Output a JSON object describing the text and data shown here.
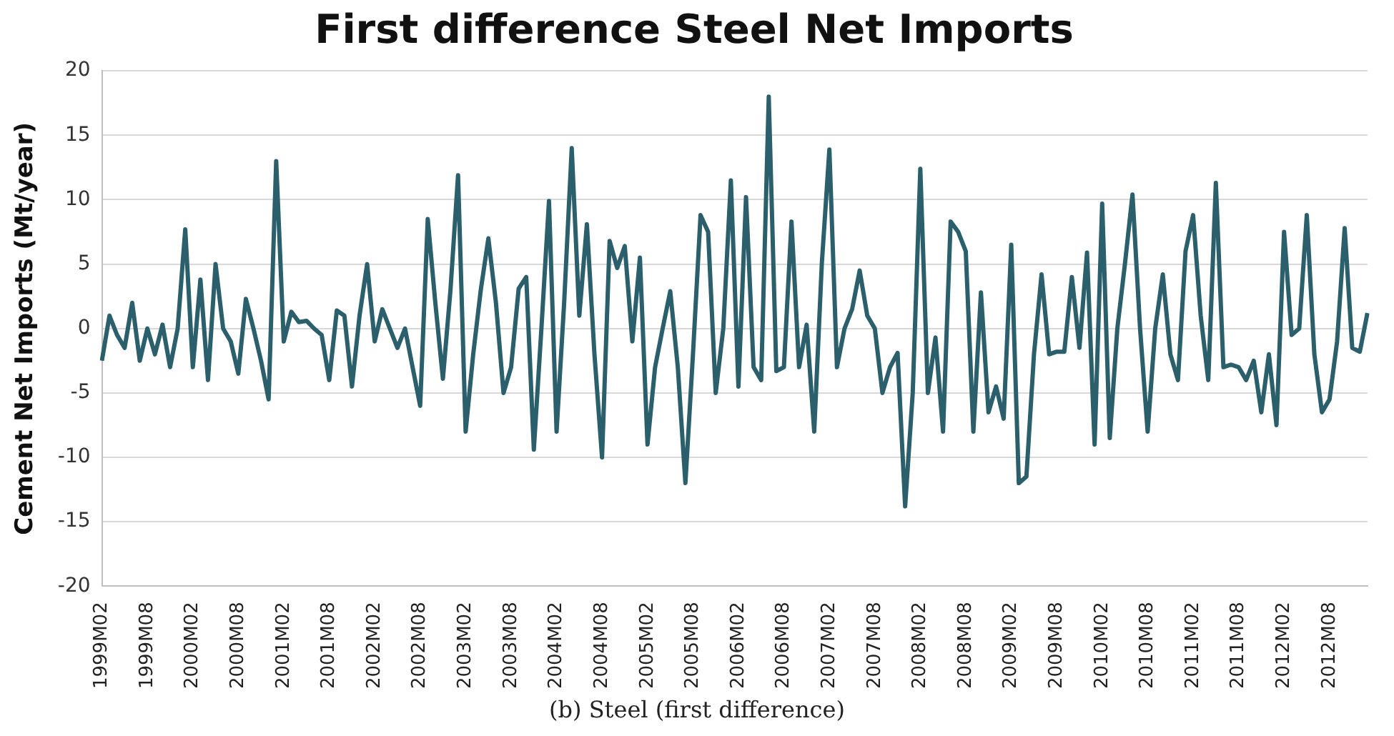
{
  "chart_data": {
    "type": "line",
    "title": "First difference Steel Net Imports",
    "ylabel": "Cement Net Imports (Mt/year)",
    "annotations": [
      "(b) Steel (first difference)"
    ],
    "categories": [
      "1999M02",
      null,
      null,
      null,
      null,
      null,
      "1999M08",
      null,
      null,
      null,
      null,
      null,
      "2000M02",
      null,
      null,
      null,
      null,
      null,
      "2000M08",
      null,
      null,
      null,
      null,
      null,
      "2001M02",
      null,
      null,
      null,
      null,
      null,
      "2001M08",
      null,
      null,
      null,
      null,
      null,
      "2002M02",
      null,
      null,
      null,
      null,
      null,
      "2002M08",
      null,
      null,
      null,
      null,
      null,
      "2003M02",
      null,
      null,
      null,
      null,
      null,
      "2003M08",
      null,
      null,
      null,
      null,
      null,
      "2004M02",
      null,
      null,
      null,
      null,
      null,
      "2004M08",
      null,
      null,
      null,
      null,
      null,
      "2005M02",
      null,
      null,
      null,
      null,
      null,
      "2005M08",
      null,
      null,
      null,
      null,
      null,
      "2006M02",
      null,
      null,
      null,
      null,
      null,
      "2006M08",
      null,
      null,
      null,
      null,
      null,
      "2007M02",
      null,
      null,
      null,
      null,
      null,
      "2007M08",
      null,
      null,
      null,
      null,
      null,
      "2008M02",
      null,
      null,
      null,
      null,
      null,
      "2008M08",
      null,
      null,
      null,
      null,
      null,
      "2009M02",
      null,
      null,
      null,
      null,
      null,
      "2009M08",
      null,
      null,
      null,
      null,
      null,
      "2010M02",
      null,
      null,
      null,
      null,
      null,
      "2010M08",
      null,
      null,
      null,
      null,
      null,
      "2011M02",
      null,
      null,
      null,
      null,
      null,
      "2011M08",
      null,
      null,
      null,
      null,
      null,
      "2012M02",
      null,
      null,
      null,
      null,
      null,
      "2012M08",
      null,
      null,
      null,
      null,
      null
    ],
    "series": [
      {
        "color": "#2a5f6b",
        "values": [
          -2.5,
          1,
          -0.5,
          -1.5,
          2,
          -2.5,
          0,
          -2,
          0.3,
          -3,
          0,
          7.7,
          -3,
          3.8,
          -4,
          5,
          0,
          -1,
          -3.5,
          2.3,
          0,
          -2.5,
          -5.5,
          13,
          -1,
          1.3,
          0.5,
          0.6,
          0,
          -0.5,
          -4,
          1.4,
          1,
          -4.5,
          1,
          5,
          -1,
          1.5,
          0,
          -1.5,
          0,
          -3,
          -6,
          8.5,
          2,
          -3.9,
          3,
          11.9,
          -8,
          -2,
          3,
          7,
          2,
          -5,
          -3,
          3.1,
          4,
          -9.4,
          0,
          9.9,
          -8,
          2,
          14,
          1,
          8.1,
          -2,
          -10,
          6.8,
          4.7,
          6.4,
          -1,
          5.5,
          -9,
          -3,
          0,
          2.9,
          -3,
          -12,
          -2,
          8.8,
          7.5,
          -5,
          0,
          11.5,
          -4.5,
          10.2,
          -3,
          -4,
          18,
          -3.3,
          -3,
          8.3,
          -3,
          0.3,
          -8,
          5,
          13.9,
          -3,
          0,
          1.5,
          4.5,
          1,
          0,
          -5,
          -3,
          -1.9,
          -13.8,
          -5,
          12.4,
          -5,
          -0.7,
          -8,
          8.3,
          7.5,
          6,
          -8,
          2.8,
          -6.5,
          -4.5,
          -7,
          6.5,
          -12,
          -11.5,
          -2,
          4.2,
          -2,
          -1.8,
          -1.8,
          4,
          -1.5,
          5.9,
          -9,
          9.7,
          -8.5,
          0,
          5,
          10.4,
          0,
          -8,
          0,
          4.2,
          -2,
          -4,
          6,
          8.8,
          1,
          -4,
          11.3,
          -3,
          -2.8,
          -3,
          -4,
          -2.5,
          -6.5,
          -2,
          -7.5,
          7.5,
          -0.5,
          0,
          8.8,
          -2,
          -6.5,
          -5.5,
          -1,
          7.8,
          -1.5,
          -1.8,
          1.2
        ]
      }
    ],
    "ylim": [
      -20,
      20
    ],
    "yticks": [
      -20,
      -15,
      -10,
      -5,
      0,
      5,
      10,
      15,
      20
    ],
    "grid": "y",
    "legend": false,
    "marker": "none",
    "line_style": "solid"
  }
}
